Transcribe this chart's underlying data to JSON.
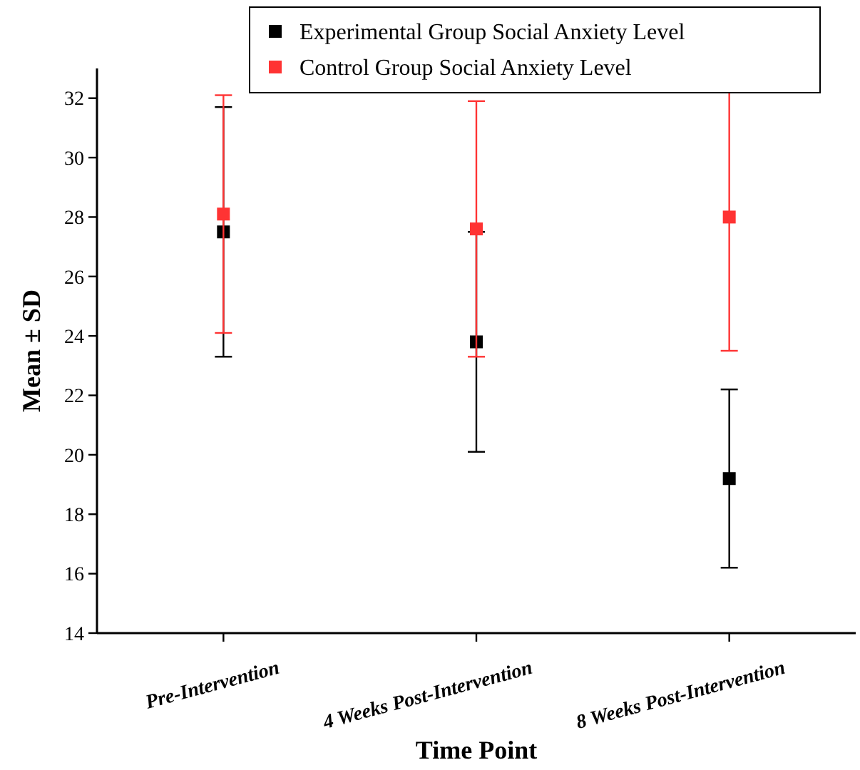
{
  "chart_data": {
    "type": "scatter",
    "xlabel": "Time Point",
    "ylabel": "Mean ± SD",
    "categories": [
      "Pre-Intervention",
      "4 Weeks Post-Intervention",
      "8 Weeks Post-Intervention"
    ],
    "series": [
      {
        "name": "Experimental Group Social Anxiety Level",
        "color": "#000000",
        "values": [
          27.5,
          23.8,
          19.2
        ],
        "errors": [
          4.2,
          3.7,
          3.0
        ]
      },
      {
        "name": "Control Group Social Anxiety Level",
        "color": "#ff3333",
        "values": [
          28.1,
          27.6,
          28.0
        ],
        "errors": [
          4.0,
          4.3,
          4.5
        ]
      }
    ],
    "ylim": [
      14,
      33
    ],
    "yticks": [
      14,
      16,
      18,
      20,
      22,
      24,
      26,
      28,
      30,
      32
    ],
    "marker": "square",
    "legend": "top right",
    "grid": false
  }
}
